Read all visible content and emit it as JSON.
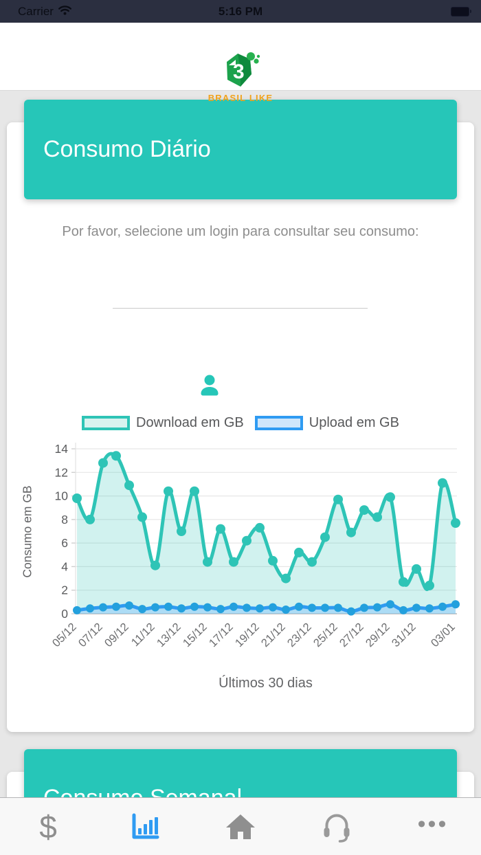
{
  "status_bar": {
    "carrier": "Carrier",
    "time": "5:16 PM"
  },
  "header": {
    "brand": "BRASIL LIKE"
  },
  "daily": {
    "title": "Consumo Diário",
    "instruction": "Por favor, selecione um login para consultar seu consumo:",
    "login_select_value": ""
  },
  "weekly": {
    "title": "Consumo Semanal"
  },
  "chart_data": {
    "type": "line",
    "title": "",
    "xlabel": "Últimos 30 dias",
    "ylabel": "Consumo em GB",
    "ylim": [
      0,
      14
    ],
    "y_ticks": [
      0,
      2,
      4,
      6,
      8,
      10,
      12,
      14
    ],
    "grid": true,
    "legend_position": "top",
    "x_tick_labels": [
      "05/12",
      "07/12",
      "09/12",
      "11/12",
      "13/12",
      "15/12",
      "17/12",
      "19/12",
      "21/12",
      "23/12",
      "25/12",
      "27/12",
      "29/12",
      "31/12",
      "03/01"
    ],
    "series": [
      {
        "name": "Download em GB",
        "color": "#2ec4b6",
        "fill": "rgba(46,196,182,0.22)",
        "swatch_fill": "#d8f3ef",
        "point_color": "#2ec4b6",
        "point_radius": 7,
        "values": [
          9.8,
          8.0,
          12.8,
          13.4,
          10.9,
          8.2,
          4.1,
          10.4,
          7.0,
          10.4,
          4.4,
          7.2,
          4.4,
          6.2,
          7.3,
          4.5,
          3.0,
          5.2,
          4.4,
          6.5,
          9.7,
          6.9,
          8.8,
          8.2,
          9.9,
          2.7,
          3.8,
          2.4,
          11.1,
          7.7
        ]
      },
      {
        "name": "Upload em GB",
        "color": "#2f9bf2",
        "fill": "rgba(144,202,249,0.55)",
        "swatch_fill": "#cfe6fb",
        "point_color": "#23a0dd",
        "point_radius": 6,
        "values": [
          0.3,
          0.45,
          0.55,
          0.6,
          0.7,
          0.4,
          0.55,
          0.6,
          0.45,
          0.6,
          0.55,
          0.4,
          0.6,
          0.5,
          0.45,
          0.55,
          0.35,
          0.6,
          0.5,
          0.5,
          0.5,
          0.2,
          0.5,
          0.55,
          0.8,
          0.3,
          0.5,
          0.45,
          0.6,
          0.8
        ]
      }
    ]
  },
  "tabs": [
    {
      "name": "billing",
      "icon": "dollar-icon",
      "active": false
    },
    {
      "name": "consumption",
      "icon": "bar-chart-icon",
      "active": true
    },
    {
      "name": "home",
      "icon": "home-icon",
      "active": false
    },
    {
      "name": "support",
      "icon": "headset-icon",
      "active": false
    },
    {
      "name": "more",
      "icon": "ellipsis-icon",
      "active": false
    }
  ],
  "colors": {
    "accent_teal": "#26c6b8",
    "brand_orange": "#f0a21c",
    "tab_active_blue": "#2f9bf2",
    "status_bar_bg": "#2b2f40"
  }
}
